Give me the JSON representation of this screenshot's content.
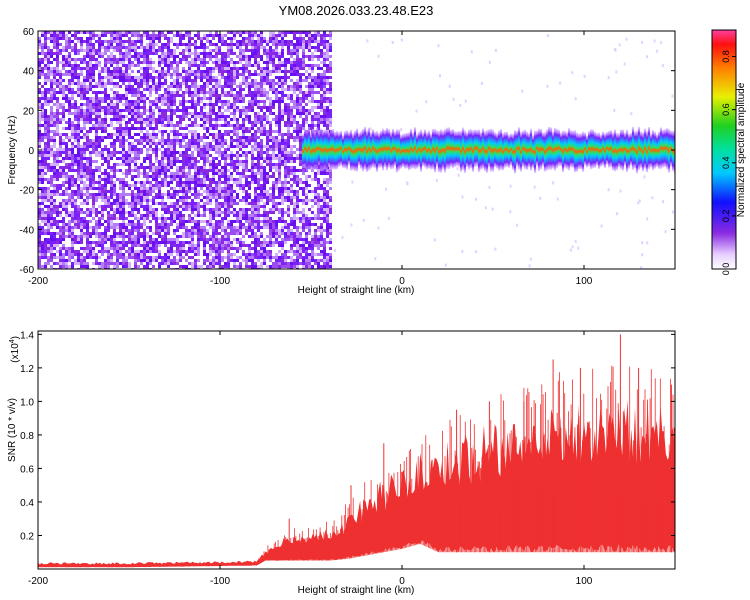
{
  "title": "YM08.2026.033.23.48.E23",
  "colors": {
    "snr_line": "#ee3030",
    "axis": "#000000",
    "background": "#ffffff",
    "noise": "#8a2be2"
  },
  "chart_data": [
    {
      "type": "heatmap",
      "title": "YM08.2026.033.23.48.E23",
      "xlabel": "Height of straight line (km)",
      "ylabel": "Frequency (Hz)",
      "xlim": [
        -200,
        150
      ],
      "ylim": [
        -60,
        60
      ],
      "xticks": [
        -200,
        -100,
        0,
        100
      ],
      "yticks": [
        60,
        40,
        20,
        0,
        -20,
        -40,
        -60
      ],
      "noise_region": {
        "x_from": -200,
        "x_to": -40
      },
      "signal_band": {
        "x_from": -55,
        "x_to": 150,
        "center_hz": 0,
        "half_width_hz": 8
      },
      "colorbar": {
        "label": "Normalized spectral amplitude",
        "range": [
          0.0,
          0.9
        ],
        "ticks": [
          "0.0",
          "0.2",
          "0.4",
          "0.6",
          "0.8"
        ],
        "colormap": "rainbow"
      },
      "grid": false
    },
    {
      "type": "line",
      "xlabel": "Height of straight line (km)",
      "ylabel": "SNR (10 * v/v)",
      "y_multiplier": "(x10",
      "y_multiplier_exp": "4",
      "y_multiplier_close": ")",
      "xlim": [
        -200,
        150
      ],
      "ylim": [
        0,
        1.42
      ],
      "xticks": [
        -200,
        -100,
        0,
        100
      ],
      "yticks": [
        "0.2",
        "0.4",
        "0.6",
        "0.8",
        "1.0",
        "1.2",
        "1.4"
      ],
      "envelope": {
        "x": [
          -200,
          -150,
          -80,
          -75,
          -60,
          -50,
          -40,
          -30,
          -20,
          -10,
          0,
          10,
          20,
          40,
          60,
          80,
          100,
          120,
          150
        ],
        "low": [
          0.01,
          0.01,
          0.02,
          0.05,
          0.05,
          0.05,
          0.05,
          0.06,
          0.08,
          0.1,
          0.12,
          0.15,
          0.1,
          0.1,
          0.1,
          0.1,
          0.1,
          0.1,
          0.1
        ],
        "high": [
          0.04,
          0.04,
          0.05,
          0.12,
          0.22,
          0.22,
          0.25,
          0.35,
          0.45,
          0.55,
          0.6,
          0.7,
          0.75,
          0.85,
          0.9,
          1.0,
          1.0,
          1.05,
          1.0
        ]
      },
      "peaks": [
        {
          "x": -62,
          "y": 0.3
        },
        {
          "x": -28,
          "y": 0.5
        },
        {
          "x": -10,
          "y": 0.75
        },
        {
          "x": 30,
          "y": 0.95
        },
        {
          "x": 48,
          "y": 1.0
        },
        {
          "x": 67,
          "y": 1.0
        },
        {
          "x": 83,
          "y": 1.25
        },
        {
          "x": 98,
          "y": 1.2
        },
        {
          "x": 120,
          "y": 1.4
        },
        {
          "x": 130,
          "y": 1.2
        },
        {
          "x": 148,
          "y": 1.1
        }
      ],
      "grid": false
    }
  ]
}
